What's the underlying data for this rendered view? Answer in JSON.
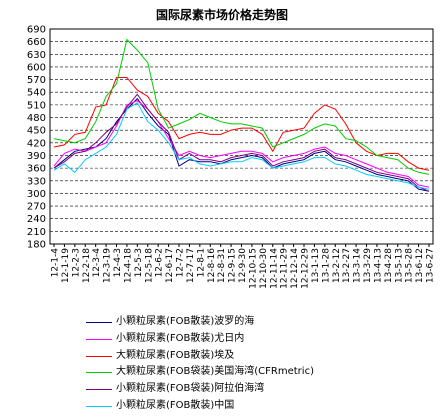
{
  "chart_data": {
    "type": "line",
    "title": "国际尿素市场价格走势图",
    "xlabel": "",
    "ylabel": "",
    "ylim": [
      180,
      690
    ],
    "yticks": [
      180,
      210,
      240,
      270,
      300,
      330,
      360,
      390,
      420,
      450,
      480,
      510,
      540,
      570,
      600,
      630,
      660,
      690
    ],
    "x": [
      "12-1-4",
      "12-1-19",
      "12-2-3",
      "12-2-18",
      "12-3-4",
      "12-3-19",
      "12-4-3",
      "12-4-18",
      "12-5-3",
      "12-5-18",
      "12-6-2",
      "12-6-17",
      "12-7-2",
      "12-7-17",
      "12-8-1",
      "12-8-16",
      "12-8-31",
      "12-9-15",
      "12-9-30",
      "12-10-15",
      "12-10-30",
      "12-11-14",
      "12-11-29",
      "12-12-14",
      "12-12-29",
      "13-1-13",
      "13-1-28",
      "13-2-12",
      "13-2-27",
      "13-3-14",
      "13-3-29",
      "13-4-13",
      "13-4-28",
      "13-5-13",
      "13-5-28",
      "13-6-12",
      "13-6-27"
    ],
    "grid": true,
    "series": [
      {
        "name": "小颗粒尿素(FOB散装)波罗的海",
        "color": "#000080",
        "values": [
          360,
          380,
          400,
          405,
          410,
          430,
          470,
          500,
          525,
          490,
          460,
          440,
          365,
          380,
          375,
          375,
          370,
          380,
          385,
          390,
          385,
          360,
          370,
          375,
          380,
          395,
          400,
          380,
          375,
          365,
          355,
          345,
          340,
          335,
          330,
          310,
          305
        ]
      },
      {
        "name": "小颗粒尿素(FOB散装)尤日内",
        "color": "#ff00ff",
        "values": [
          365,
          395,
          405,
          400,
          410,
          420,
          460,
          510,
          520,
          500,
          470,
          430,
          390,
          400,
          390,
          385,
          390,
          395,
          400,
          400,
          395,
          375,
          385,
          390,
          395,
          405,
          410,
          395,
          390,
          380,
          370,
          360,
          350,
          345,
          340,
          320,
          315
        ]
      },
      {
        "name": "大颗粒尿素(FOB散装)埃及",
        "color": "#ff0000",
        "values": [
          410,
          415,
          440,
          445,
          505,
          510,
          575,
          575,
          545,
          530,
          490,
          470,
          430,
          440,
          445,
          440,
          440,
          450,
          455,
          455,
          440,
          400,
          445,
          450,
          455,
          490,
          510,
          500,
          465,
          420,
          400,
          390,
          395,
          395,
          375,
          360,
          355
        ]
      },
      {
        "name": "大颗粒尿素(FOB袋装)美国海湾(CFRmetric)",
        "color": "#00cc00",
        "values": [
          430,
          425,
          420,
          430,
          470,
          530,
          560,
          665,
          640,
          610,
          500,
          455,
          465,
          475,
          490,
          480,
          470,
          465,
          465,
          460,
          455,
          410,
          420,
          430,
          440,
          455,
          465,
          460,
          430,
          425,
          410,
          390,
          385,
          380,
          360,
          350,
          345
        ]
      },
      {
        "name": "小颗粒尿素(FOB袋装)阿拉伯海湾",
        "color": "#800080",
        "values": [
          360,
          375,
          395,
          400,
          420,
          445,
          465,
          505,
          535,
          500,
          470,
          445,
          380,
          395,
          380,
          380,
          375,
          385,
          390,
          395,
          390,
          365,
          375,
          380,
          385,
          400,
          405,
          385,
          380,
          370,
          360,
          350,
          345,
          340,
          335,
          315,
          305
        ]
      },
      {
        "name": "小颗粒尿素(FOB散装)中国",
        "color": "#00ccff",
        "values": [
          355,
          370,
          350,
          380,
          395,
          410,
          440,
          500,
          515,
          470,
          450,
          420,
          380,
          385,
          370,
          365,
          370,
          375,
          375,
          385,
          380,
          360,
          365,
          370,
          375,
          385,
          385,
          370,
          365,
          355,
          345,
          340,
          335,
          330,
          325,
          315,
          310
        ]
      }
    ]
  }
}
